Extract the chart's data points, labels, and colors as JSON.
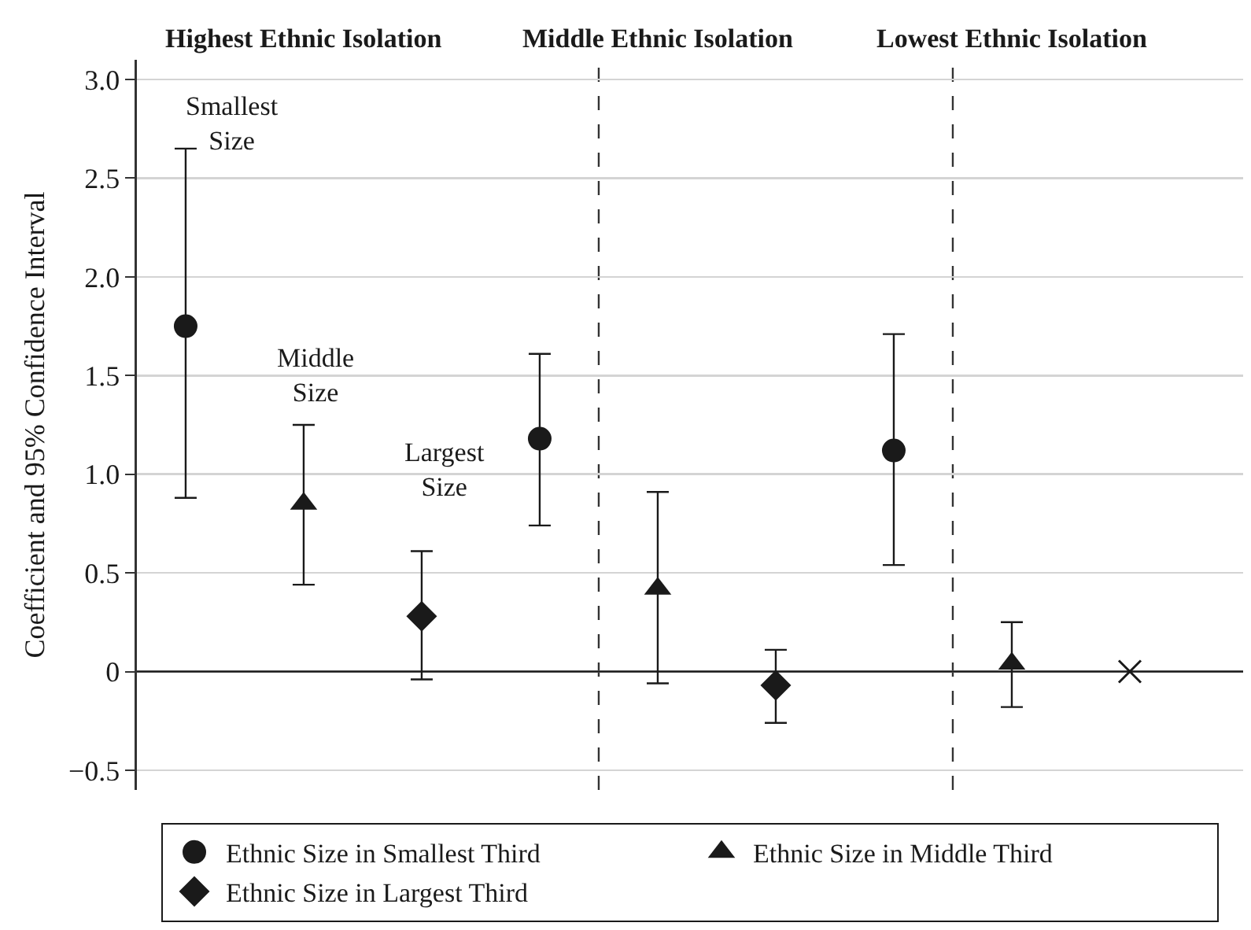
{
  "chart_data": {
    "type": "scatter",
    "ylabel": "Coefficient and 95% Confidence Interval",
    "categories": [
      null,
      null,
      null,
      null,
      null,
      null,
      null,
      null,
      null
    ],
    "series": [
      {
        "name": "Ethnic Size in Smallest Third",
        "color": "#1a1a1a",
        "marker": "circle",
        "values": [
          1.75,
          null,
          null,
          1.18,
          null,
          null,
          1.12,
          null,
          null
        ],
        "errors": [
          [
            0.88,
            2.65
          ],
          null,
          null,
          [
            0.74,
            1.61
          ],
          null,
          null,
          [
            0.54,
            1.71
          ],
          null,
          null
        ]
      },
      {
        "name": "Ethnic Size in Middle Third",
        "color": "#1a1a1a",
        "marker": "triangle",
        "values": [
          null,
          0.85,
          null,
          null,
          0.42,
          null,
          null,
          0.04,
          null
        ],
        "errors": [
          null,
          [
            0.44,
            1.25
          ],
          null,
          null,
          [
            -0.06,
            0.91
          ],
          null,
          null,
          [
            -0.18,
            0.25
          ],
          null
        ]
      },
      {
        "name": "Ethnic Size in Largest Third",
        "color": "#1a1a1a",
        "marker": "diamond",
        "values": [
          null,
          null,
          0.28,
          null,
          null,
          -0.07,
          null,
          null,
          null
        ],
        "errors": [
          null,
          null,
          [
            -0.04,
            0.61
          ],
          null,
          null,
          [
            -0.26,
            0.11
          ],
          null,
          null,
          null
        ]
      },
      {
        "color": "#1a1a1a",
        "marker": "cross",
        "values": [
          null,
          null,
          null,
          null,
          null,
          null,
          null,
          null,
          0
        ]
      }
    ],
    "ylim": [
      -0.6,
      3.1
    ],
    "yticks": [
      {
        "value": -0.5,
        "label": "−0.5"
      },
      0,
      0.5,
      {
        "value": 1,
        "label": "1.0"
      },
      1.5,
      {
        "value": 2,
        "label": "2.0"
      },
      2.5,
      {
        "value": 3,
        "label": "3.0"
      }
    ],
    "ref_lines": [
      {
        "axis": "y",
        "value": 0,
        "line_style": "solid",
        "color": "#1a1a1a"
      }
    ],
    "annotations": [
      "Highest Ethnic Isolation",
      "Middle Ethnic Isolation",
      "Lowest Ethnic Isolation",
      "Smallest\nSize",
      "Middle\nSize",
      "Largest\nSize"
    ],
    "grid": "y",
    "legend": "bottom",
    "tick_labels": "y"
  }
}
